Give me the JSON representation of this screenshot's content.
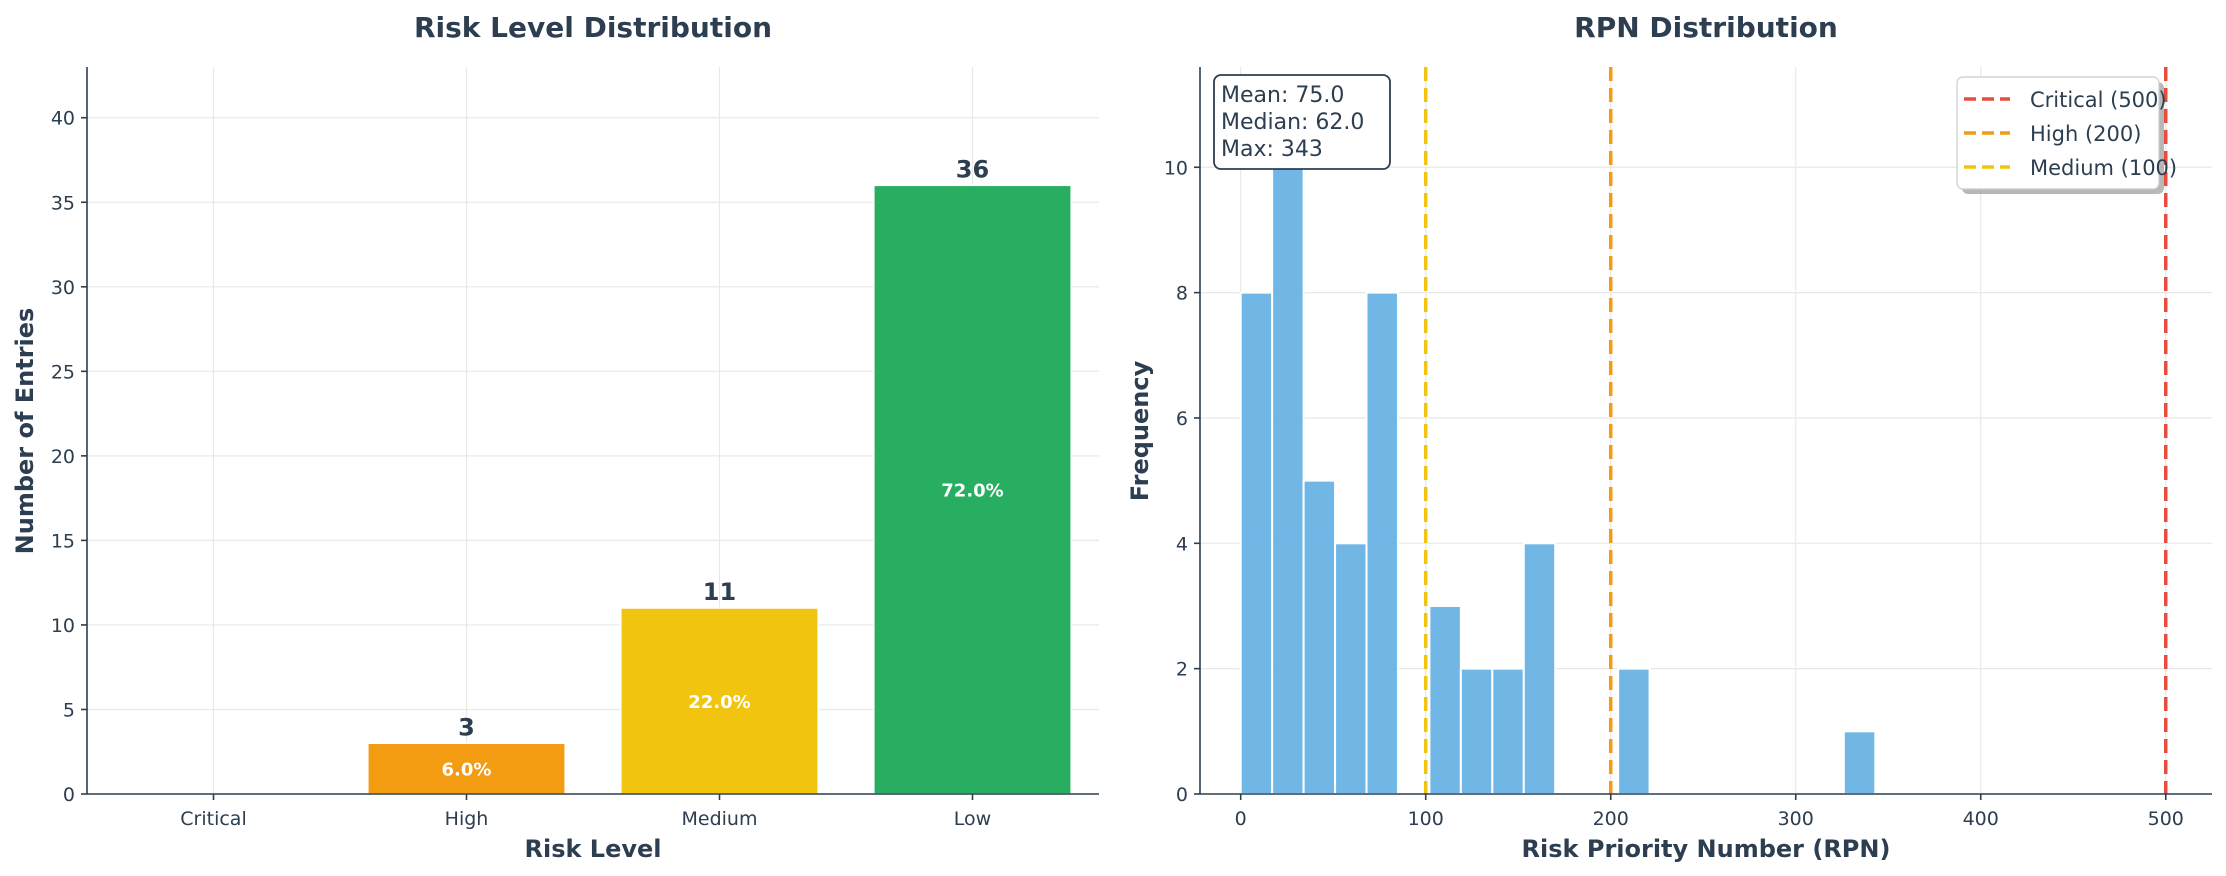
{
  "chart_data": [
    {
      "type": "bar",
      "title": "Risk Level Distribution",
      "xlabel": "Risk Level",
      "ylabel": "Number of Entries",
      "categories": [
        "Critical",
        "High",
        "Medium",
        "Low"
      ],
      "values": [
        0,
        3,
        11,
        36
      ],
      "percent_labels": [
        "",
        "6.0%",
        "22.0%",
        "72.0%"
      ],
      "colors": [
        "#e74c3c",
        "#f39c12",
        "#f1c40f",
        "#27ae60"
      ],
      "ylim": [
        0,
        43
      ],
      "yticks": [
        0,
        5,
        10,
        15,
        20,
        25,
        30,
        35,
        40
      ],
      "grid": true,
      "legend": "none"
    },
    {
      "type": "histogram",
      "title": "RPN Distribution",
      "xlabel": "Risk Priority Number (RPN)",
      "ylabel": "Frequency",
      "bin_width": 17,
      "bins": [
        {
          "x0": 0,
          "x1": 17,
          "count": 8
        },
        {
          "x0": 17,
          "x1": 34,
          "count": 11
        },
        {
          "x0": 34,
          "x1": 51,
          "count": 5
        },
        {
          "x0": 51,
          "x1": 68,
          "count": 4
        },
        {
          "x0": 68,
          "x1": 85,
          "count": 8
        },
        {
          "x0": 102,
          "x1": 119,
          "count": 3
        },
        {
          "x0": 119,
          "x1": 136,
          "count": 2
        },
        {
          "x0": 136,
          "x1": 153,
          "count": 2
        },
        {
          "x0": 153,
          "x1": 170,
          "count": 4
        },
        {
          "x0": 204,
          "x1": 221,
          "count": 2
        },
        {
          "x0": 326,
          "x1": 343,
          "count": 1
        }
      ],
      "bar_color": "#5dade2",
      "xlim": [
        -22,
        525
      ],
      "ylim": [
        0,
        11.6
      ],
      "xticks": [
        0,
        100,
        200,
        300,
        400,
        500
      ],
      "yticks": [
        0,
        2,
        4,
        6,
        8,
        10
      ],
      "thresholds": [
        {
          "value": 500,
          "label": "Critical (500)",
          "color": "#e74c3c"
        },
        {
          "value": 200,
          "label": "High (200)",
          "color": "#f39c12"
        },
        {
          "value": 100,
          "label": "Medium (100)",
          "color": "#f1c40f"
        }
      ],
      "stats_box": [
        "Mean: 75.0",
        "Median: 62.0",
        "Max: 343"
      ],
      "legend": "top-right",
      "grid": true
    }
  ]
}
